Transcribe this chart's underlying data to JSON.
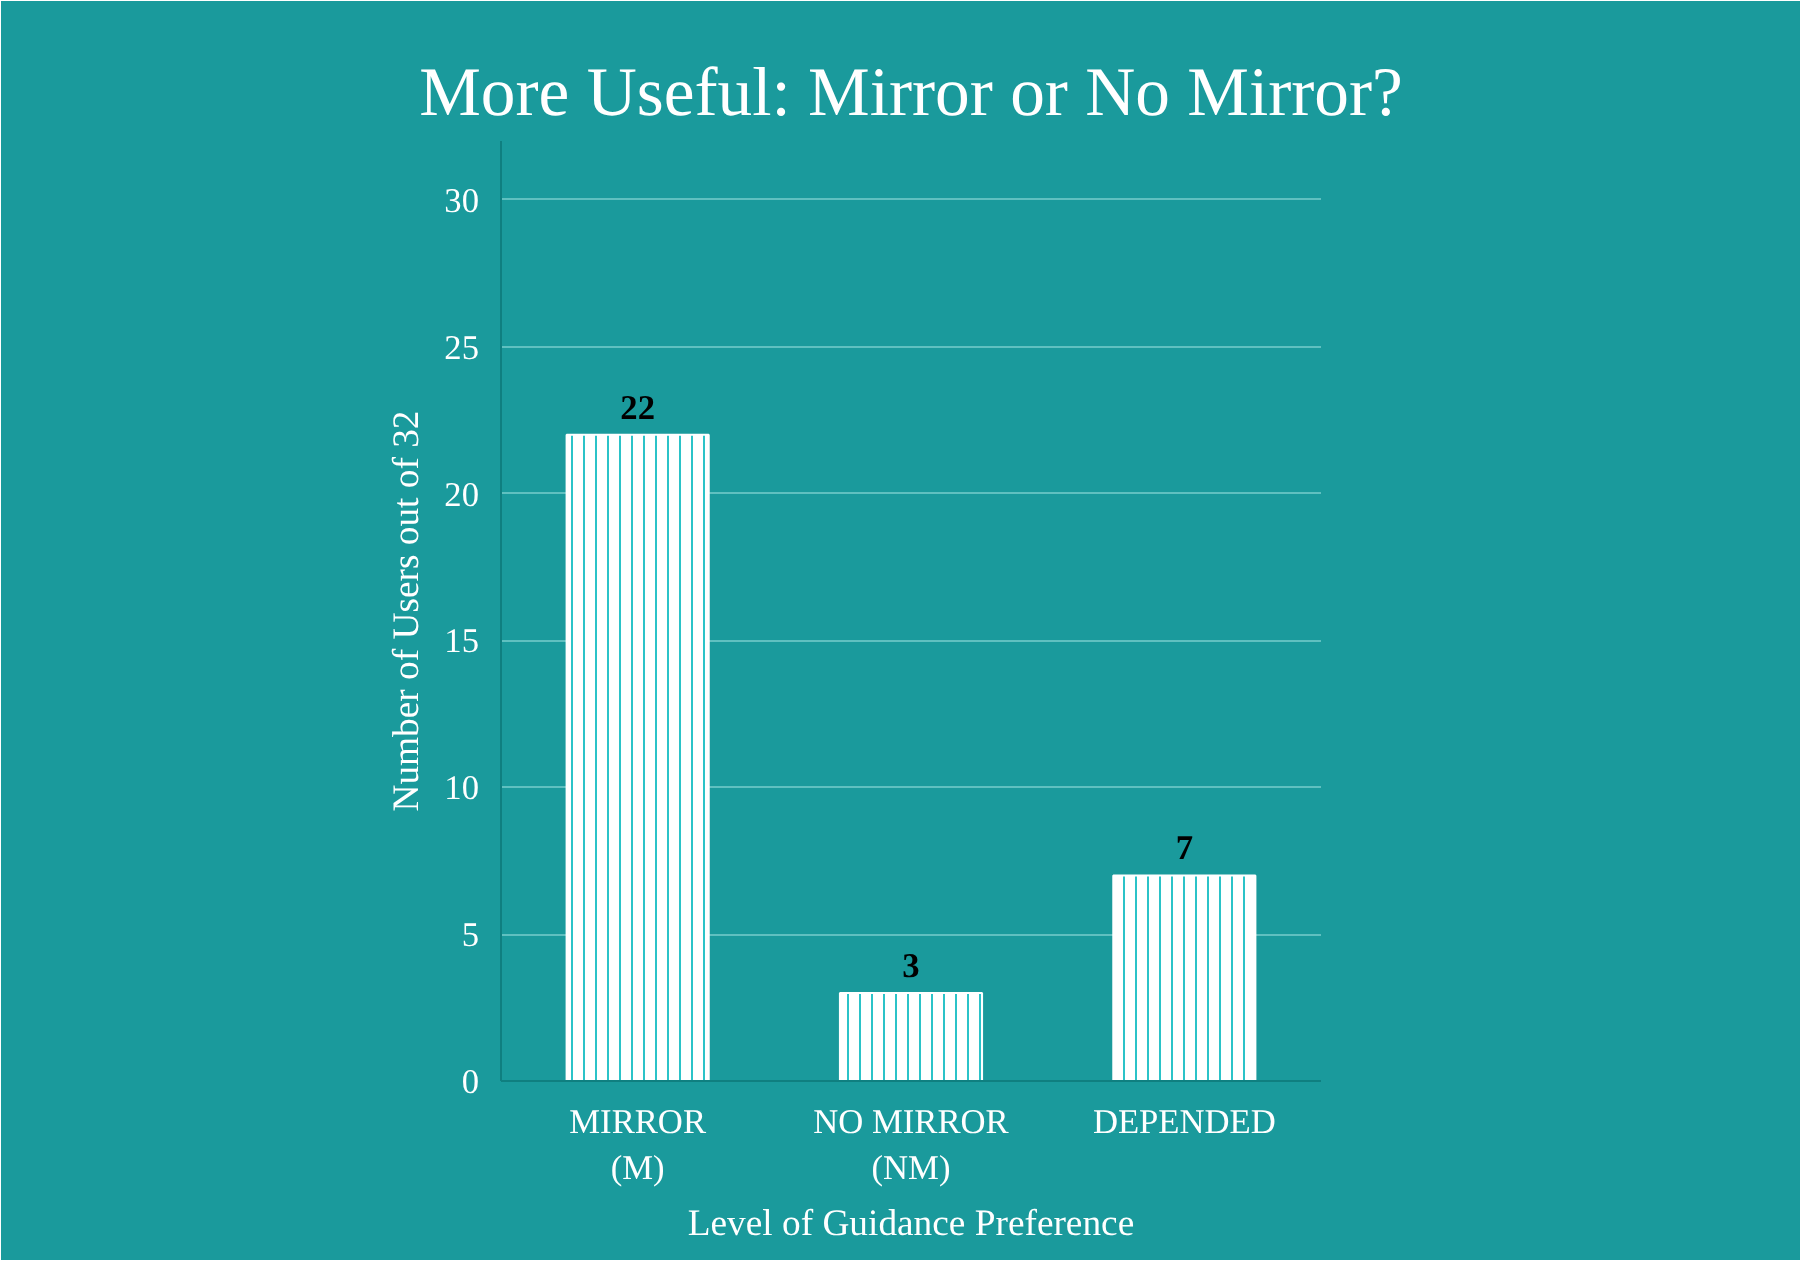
{
  "chart_data": {
    "type": "bar",
    "title": "More Useful: Mirror or No Mirror?",
    "xlabel": "Level of Guidance Preference",
    "ylabel": "Number of Users out of 32",
    "categories": [
      "MIRROR\n(M)",
      "NO MIRROR\n(NM)",
      "DEPENDED"
    ],
    "values": [
      22,
      3,
      7
    ],
    "color": "#ffffff",
    "data_labels": true,
    "ylim": [
      0,
      32
    ],
    "yticks": [
      0,
      5,
      10,
      15,
      20,
      25,
      30
    ],
    "grid": "y"
  }
}
